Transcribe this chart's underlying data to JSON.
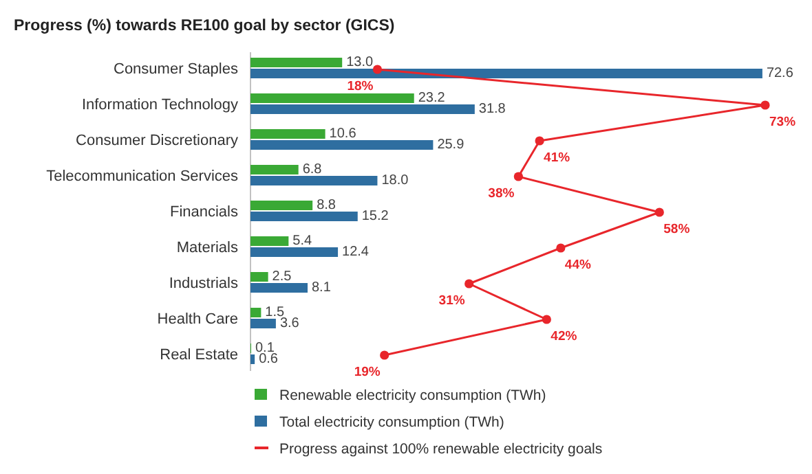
{
  "chart_data": {
    "type": "bar",
    "orientation": "horizontal",
    "title": "Progress (%) towards RE100 goal by sector (GICS)",
    "categories": [
      "Consumer Staples",
      "Information Technology",
      "Consumer Discretionary",
      "Telecommunication Services",
      "Financials",
      "Materials",
      "Industrials",
      "Health Care",
      "Real Estate"
    ],
    "series": [
      {
        "name": "Renewable electricity consumption (TWh)",
        "color": "#3aa935",
        "values": [
          13.0,
          23.2,
          10.6,
          6.8,
          8.8,
          5.4,
          2.5,
          1.5,
          0.1
        ],
        "value_labels": [
          "13.0",
          "23.2",
          "10.6",
          "6.8",
          "8.8",
          "5.4",
          "2.5",
          "1.5",
          "0.1"
        ]
      },
      {
        "name": "Total electricity consumption (TWh)",
        "color": "#2e6ea0",
        "values": [
          72.6,
          31.8,
          25.9,
          18.0,
          15.2,
          12.4,
          8.1,
          3.6,
          0.6
        ],
        "value_labels": [
          "72.6",
          "31.8",
          "25.9",
          "18.0",
          "15.2",
          "12.4",
          "8.1",
          "3.6",
          "0.6"
        ]
      },
      {
        "name": "Progress against 100% renewable electricity goals",
        "type": "line",
        "color": "#e8262b",
        "marker": "circle",
        "values": [
          18,
          73,
          41,
          38,
          58,
          44,
          31,
          42,
          19
        ],
        "value_labels": [
          "18%",
          "73%",
          "41%",
          "38%",
          "58%",
          "44%",
          "31%",
          "42%",
          "19%"
        ]
      }
    ],
    "tick_labels": "y",
    "legend": "bottom"
  }
}
